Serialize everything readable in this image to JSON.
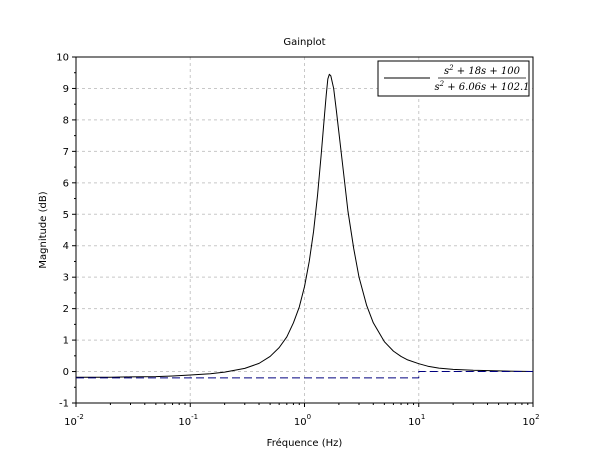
{
  "chart_data": {
    "type": "line",
    "title": "Gainplot",
    "xlabel": "Fréquence (Hz)",
    "ylabel": "Magnitude (dB)",
    "x_scale": "log",
    "xlim": [
      0.01,
      100
    ],
    "ylim": [
      -1,
      10
    ],
    "x_ticks": [
      {
        "value": 0.01,
        "base": "10",
        "exp": "-2"
      },
      {
        "value": 0.1,
        "base": "10",
        "exp": "-1"
      },
      {
        "value": 1,
        "base": "10",
        "exp": "0"
      },
      {
        "value": 10,
        "base": "10",
        "exp": "1"
      },
      {
        "value": 100,
        "base": "10",
        "exp": "2"
      }
    ],
    "y_ticks": [
      "-1",
      "0",
      "1",
      "2",
      "3",
      "4",
      "5",
      "6",
      "7",
      "8",
      "9",
      "10"
    ],
    "grid": true,
    "legend_position": "top-right",
    "legend": {
      "numerator": {
        "pre": "s",
        "sup": "2",
        "post": " + 18s + 100"
      },
      "denominator": {
        "pre": "s",
        "sup": "2",
        "post": " + 6.06s + 102.1"
      }
    },
    "series": [
      {
        "color": "#000000",
        "style": "solid",
        "x": [
          0.01,
          0.02,
          0.03,
          0.05,
          0.07,
          0.1,
          0.15,
          0.2,
          0.3,
          0.4,
          0.5,
          0.6,
          0.7,
          0.8,
          0.9,
          1.0,
          1.1,
          1.2,
          1.3,
          1.4,
          1.5,
          1.55,
          1.6,
          1.65,
          1.7,
          1.8,
          1.9,
          2.0,
          2.2,
          2.4,
          2.7,
          3.0,
          3.5,
          4.0,
          5.0,
          6.0,
          7.0,
          8.0,
          10.0,
          12.0,
          15.0,
          20.0,
          30.0,
          50.0,
          70.0,
          100.0
        ],
        "y": [
          -0.18,
          -0.18,
          -0.17,
          -0.16,
          -0.14,
          -0.11,
          -0.07,
          -0.02,
          0.1,
          0.26,
          0.48,
          0.76,
          1.1,
          1.55,
          2.05,
          2.7,
          3.5,
          4.45,
          5.6,
          6.9,
          8.2,
          8.8,
          9.3,
          9.45,
          9.4,
          9.0,
          8.3,
          7.6,
          6.3,
          5.1,
          3.9,
          3.0,
          2.1,
          1.55,
          0.95,
          0.65,
          0.48,
          0.37,
          0.25,
          0.17,
          0.11,
          0.07,
          0.04,
          0.02,
          0.01,
          0.0
        ]
      },
      {
        "color": "#00007f",
        "style": "dashed",
        "x": [
          0.01,
          10.0,
          10.0,
          100.0
        ],
        "y": [
          -0.2,
          -0.2,
          0.0,
          0.0
        ]
      }
    ]
  }
}
